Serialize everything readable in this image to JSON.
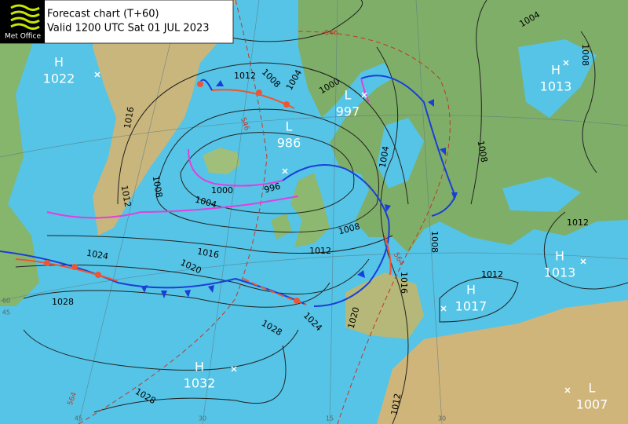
{
  "header": {
    "logo": "Met Office",
    "title": "Forecast chart (T+60)",
    "valid": "Valid 1200 UTC Sat 01 JUL 2023"
  },
  "pressure_centres": [
    {
      "kind": "H",
      "value": 1022
    },
    {
      "kind": "L",
      "value": 997
    },
    {
      "kind": "L",
      "value": 986
    },
    {
      "kind": "H",
      "value": 1013
    },
    {
      "kind": "H",
      "value": 1013
    },
    {
      "kind": "H",
      "value": 1017
    },
    {
      "kind": "H",
      "value": 1032
    },
    {
      "kind": "L",
      "value": 1007
    }
  ],
  "isobar_labels": [
    1012,
    1008,
    1004,
    1000,
    1016,
    1012,
    1008,
    1000,
    996,
    1004,
    1004,
    1008,
    1008,
    1004,
    1008,
    1012,
    1016,
    1024,
    1020,
    1028,
    1028,
    1024,
    1020,
    1016,
    1008,
    1012,
    1012,
    1028,
    1012
  ],
  "thickness_labels": [
    546,
    546,
    564,
    564
  ],
  "grid_labels": [
    60,
    45,
    45,
    30,
    15,
    30
  ]
}
